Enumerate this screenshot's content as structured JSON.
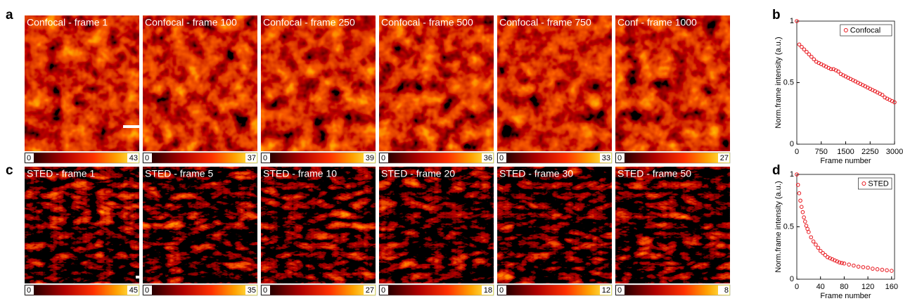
{
  "letters": [
    "a",
    "b",
    "c",
    "d"
  ],
  "images": {
    "confocal": [
      {
        "label": "Confocal - frame 1",
        "min": 0,
        "max": 43
      },
      {
        "label": "Confocal - frame 100",
        "min": 0,
        "max": 37
      },
      {
        "label": "Confocal - frame 250",
        "min": 0,
        "max": 39
      },
      {
        "label": "Confocal - frame 500",
        "min": 0,
        "max": 36
      },
      {
        "label": "Confocal - frame 750",
        "min": 0,
        "max": 33
      },
      {
        "label": "Conf - frame 1000",
        "min": 0,
        "max": 27
      }
    ],
    "sted": [
      {
        "label": "STED - frame 1",
        "min": 0,
        "max": 45
      },
      {
        "label": "STED - frame 5",
        "min": 0,
        "max": 35
      },
      {
        "label": "STED - frame 10",
        "min": 0,
        "max": 27
      },
      {
        "label": "STED - frame 20",
        "min": 0,
        "max": 18
      },
      {
        "label": "STED - frame 30",
        "min": 0,
        "max": 12
      },
      {
        "label": "STED - frame 50",
        "min": 0,
        "max": 8
      }
    ]
  },
  "chart_data": [
    {
      "type": "scatter",
      "xlabel": "Frame number",
      "ylabel": "Norm.frame intensity (a.u.)",
      "xlim": [
        0,
        3000
      ],
      "xticks": [
        0,
        750,
        1500,
        2250,
        3000
      ],
      "ylim": [
        0,
        1
      ],
      "yticks": [
        0,
        0.5,
        1
      ],
      "legend": "upper right",
      "x": [
        0,
        75,
        150,
        225,
        300,
        375,
        450,
        525,
        600,
        675,
        750,
        825,
        900,
        975,
        1050,
        1125,
        1200,
        1275,
        1350,
        1425,
        1500,
        1575,
        1650,
        1725,
        1800,
        1875,
        1950,
        2025,
        2100,
        2175,
        2250,
        2325,
        2400,
        2475,
        2550,
        2625,
        2700,
        2775,
        2850,
        2925,
        3000
      ],
      "series": [
        {
          "name": "Confocal",
          "color": "#e8141b",
          "values": [
            1.0,
            0.81,
            0.79,
            0.77,
            0.75,
            0.73,
            0.71,
            0.69,
            0.67,
            0.66,
            0.65,
            0.64,
            0.63,
            0.62,
            0.61,
            0.61,
            0.6,
            0.59,
            0.57,
            0.56,
            0.55,
            0.54,
            0.53,
            0.52,
            0.51,
            0.5,
            0.49,
            0.48,
            0.47,
            0.46,
            0.45,
            0.44,
            0.43,
            0.42,
            0.41,
            0.4,
            0.38,
            0.37,
            0.36,
            0.35,
            0.34
          ]
        }
      ]
    },
    {
      "type": "scatter",
      "xlabel": "Frame number",
      "ylabel": "Norm.frame intensity (a.u.)",
      "xlim": [
        0,
        165
      ],
      "xticks": [
        0,
        40,
        80,
        120,
        160
      ],
      "ylim": [
        0,
        1
      ],
      "yticks": [
        0,
        0.5,
        1
      ],
      "legend": "upper right",
      "x": [
        0,
        2,
        4,
        6,
        8,
        10,
        12,
        14,
        16,
        18,
        20,
        24,
        28,
        32,
        36,
        40,
        44,
        48,
        52,
        56,
        60,
        64,
        68,
        72,
        76,
        80,
        88,
        96,
        104,
        112,
        120,
        128,
        136,
        144,
        152,
        160
      ],
      "series": [
        {
          "name": "STED",
          "color": "#e8141b",
          "values": [
            1.0,
            0.9,
            0.82,
            0.75,
            0.69,
            0.64,
            0.59,
            0.55,
            0.51,
            0.48,
            0.45,
            0.4,
            0.36,
            0.33,
            0.3,
            0.27,
            0.25,
            0.23,
            0.21,
            0.2,
            0.19,
            0.18,
            0.17,
            0.16,
            0.155,
            0.15,
            0.14,
            0.13,
            0.12,
            0.115,
            0.11,
            0.1,
            0.095,
            0.09,
            0.085,
            0.08
          ]
        }
      ]
    }
  ]
}
